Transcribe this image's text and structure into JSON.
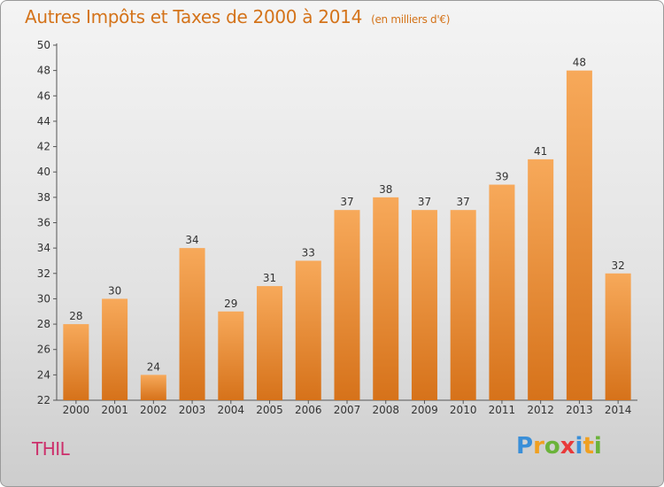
{
  "title": "Autres Impôts et Taxes de 2000 à 2014",
  "unit": "(en milliers d'€)",
  "commune": "THIL",
  "logo": {
    "letters": [
      "P",
      "r",
      "o",
      "x",
      "i",
      "t",
      "i"
    ],
    "colors": [
      "#3a8fd8",
      "#f0a020",
      "#6bb33a",
      "#e83a3a",
      "#3a8fd8",
      "#f0a020",
      "#6bb33a"
    ]
  },
  "colors": {
    "bar_light": "#f7a95a",
    "bar_dark": "#d6721a",
    "title": "#d4731a",
    "commune": "#cc2f6b"
  },
  "chart_data": {
    "type": "bar",
    "categories": [
      "2000",
      "2001",
      "2002",
      "2003",
      "2004",
      "2005",
      "2006",
      "2007",
      "2008",
      "2009",
      "2010",
      "2011",
      "2012",
      "2013",
      "2014"
    ],
    "values": [
      28,
      30,
      24,
      34,
      29,
      31,
      33,
      37,
      38,
      37,
      37,
      39,
      41,
      48,
      32
    ],
    "ylim": [
      22,
      50
    ],
    "yticks": [
      22,
      24,
      26,
      28,
      30,
      32,
      34,
      36,
      38,
      40,
      42,
      44,
      46,
      48,
      50
    ],
    "grid": false
  }
}
